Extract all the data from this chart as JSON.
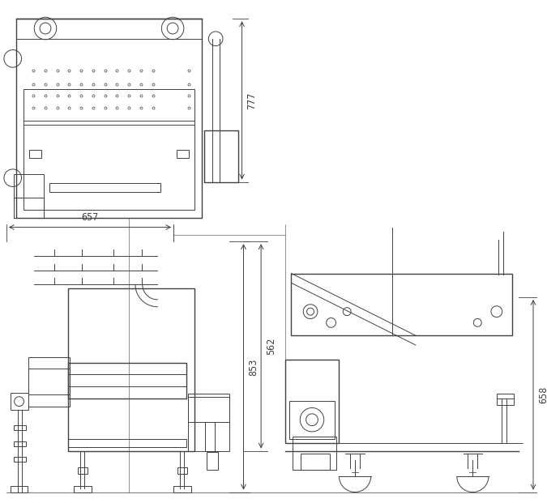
{
  "bg_color": "#ffffff",
  "line_color": "#404040",
  "dim_color": "#404040",
  "fig_width": 6.75,
  "fig_height": 6.21,
  "dpi": 100,
  "dimensions": {
    "top_height": "777",
    "front_width": "657",
    "front_height_outer": "853",
    "front_height_inner": "562",
    "side_height": "658"
  }
}
